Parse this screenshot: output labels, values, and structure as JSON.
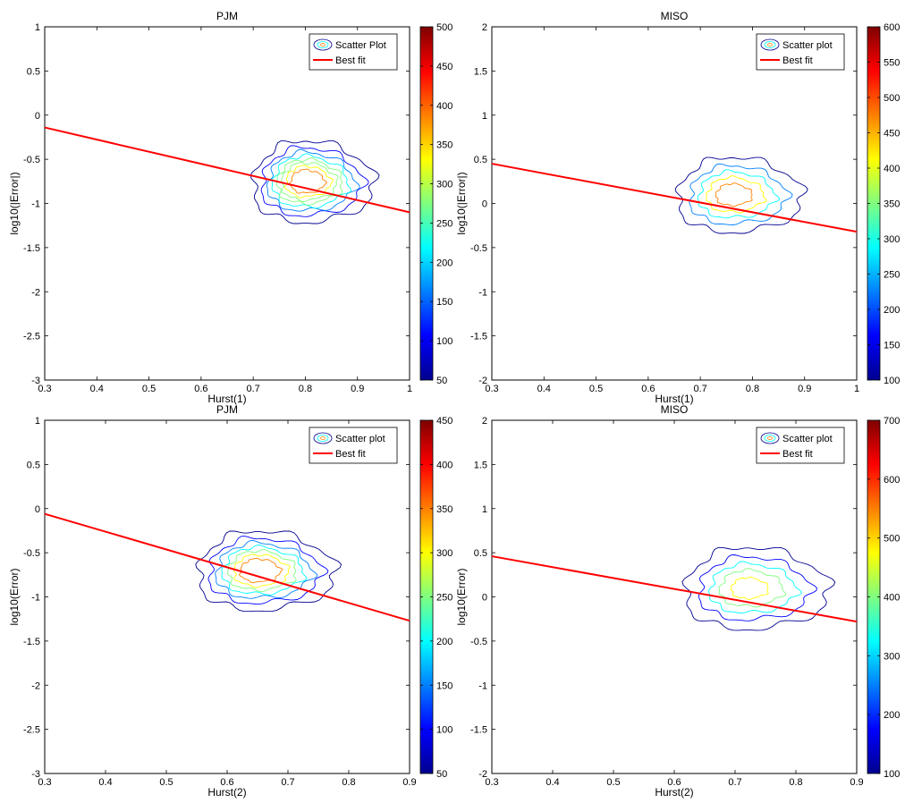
{
  "colormap": [
    "#00008f",
    "#0000ff",
    "#0080ff",
    "#00ffff",
    "#80ff80",
    "#ffff00",
    "#ff8000",
    "#ff0000",
    "#800000"
  ],
  "fit_color": "#ff0000",
  "chart_data": [
    {
      "type": "contour",
      "title": "PJM",
      "xlabel": "Hurst(1)",
      "ylabel": "log10(|Error|)",
      "xlim": [
        0.3,
        1.0
      ],
      "ylim": [
        -3,
        1
      ],
      "xticks": [
        0.3,
        0.4,
        0.5,
        0.6,
        0.7,
        0.8,
        0.9,
        1
      ],
      "yticks": [
        -3,
        -2.5,
        -2,
        -1.5,
        -1,
        -0.5,
        0,
        0.5,
        1
      ],
      "colorbar": {
        "min": 50,
        "max": 500,
        "ticks": [
          50,
          100,
          150,
          200,
          250,
          300,
          350,
          400,
          450,
          500
        ]
      },
      "legend": {
        "position": "top-right",
        "entries": [
          "Scatter Plot",
          "Best fit"
        ]
      },
      "best_fit": {
        "x": [
          0.3,
          1.0
        ],
        "y": [
          -0.14,
          -1.1
        ]
      },
      "density": {
        "center": [
          0.8,
          -0.75
        ],
        "spread": [
          0.12,
          0.48
        ],
        "peak": 480,
        "levels": [
          50,
          100,
          150,
          200,
          250,
          300,
          350,
          400
        ]
      }
    },
    {
      "type": "contour",
      "title": "MISO",
      "xlabel": "Hurst(1)",
      "ylabel": "log10(|Error|)",
      "xlim": [
        0.3,
        1.0
      ],
      "ylim": [
        -2,
        2
      ],
      "xticks": [
        0.3,
        0.4,
        0.5,
        0.6,
        0.7,
        0.8,
        0.9,
        1
      ],
      "yticks": [
        -2,
        -1.5,
        -1,
        -0.5,
        0,
        0.5,
        1,
        1.5,
        2
      ],
      "colorbar": {
        "min": 100,
        "max": 600,
        "ticks": [
          100,
          150,
          200,
          250,
          300,
          350,
          400,
          450,
          500,
          550,
          600
        ]
      },
      "legend": {
        "position": "top-right",
        "entries": [
          "Scatter plot",
          "Best fit"
        ]
      },
      "best_fit": {
        "x": [
          0.3,
          1.0
        ],
        "y": [
          0.45,
          -0.32
        ]
      },
      "density": {
        "center": [
          0.76,
          0.1
        ],
        "spread": [
          0.14,
          0.5
        ],
        "peak": 580,
        "levels": [
          100,
          200,
          300,
          400,
          500
        ]
      }
    },
    {
      "type": "contour",
      "title": "PJM",
      "xlabel": "Hurst(2)",
      "ylabel": "log10(Error)",
      "xlim": [
        0.3,
        0.9
      ],
      "ylim": [
        -3,
        1
      ],
      "xticks": [
        0.3,
        0.4,
        0.5,
        0.6,
        0.7,
        0.8,
        0.9
      ],
      "yticks": [
        -3,
        -2.5,
        -2,
        -1.5,
        -1,
        -0.5,
        0,
        0.5,
        1
      ],
      "colorbar": {
        "min": 50,
        "max": 450,
        "ticks": [
          50,
          100,
          150,
          200,
          250,
          300,
          350,
          400,
          450
        ]
      },
      "legend": {
        "position": "top-right",
        "entries": [
          "Scatter plot",
          "Best fit"
        ]
      },
      "best_fit": {
        "x": [
          0.3,
          0.9
        ],
        "y": [
          -0.06,
          -1.27
        ]
      },
      "density": {
        "center": [
          0.65,
          -0.7
        ],
        "spread": [
          0.12,
          0.48
        ],
        "peak": 420,
        "levels": [
          50,
          100,
          150,
          200,
          250,
          300,
          350
        ]
      }
    },
    {
      "type": "contour",
      "title": "MISO",
      "xlabel": "Hurst(2)",
      "ylabel": "log10(Error)",
      "xlim": [
        0.3,
        0.9
      ],
      "ylim": [
        -2,
        2
      ],
      "xticks": [
        0.3,
        0.4,
        0.5,
        0.6,
        0.7,
        0.8,
        0.9
      ],
      "yticks": [
        -2,
        -1.5,
        -1,
        -0.5,
        0,
        0.5,
        1,
        1.5,
        2
      ],
      "colorbar": {
        "min": 100,
        "max": 700,
        "ticks": [
          100,
          200,
          300,
          400,
          500,
          600,
          700
        ]
      },
      "legend": {
        "position": "top-right",
        "entries": [
          "Scatter plot",
          "Best fit"
        ]
      },
      "best_fit": {
        "x": [
          0.3,
          0.9
        ],
        "y": [
          0.46,
          -0.28
        ]
      },
      "density": {
        "center": [
          0.72,
          0.1
        ],
        "spread": [
          0.14,
          0.55
        ],
        "peak": 560,
        "levels": [
          100,
          200,
          300,
          400,
          500
        ]
      }
    }
  ]
}
